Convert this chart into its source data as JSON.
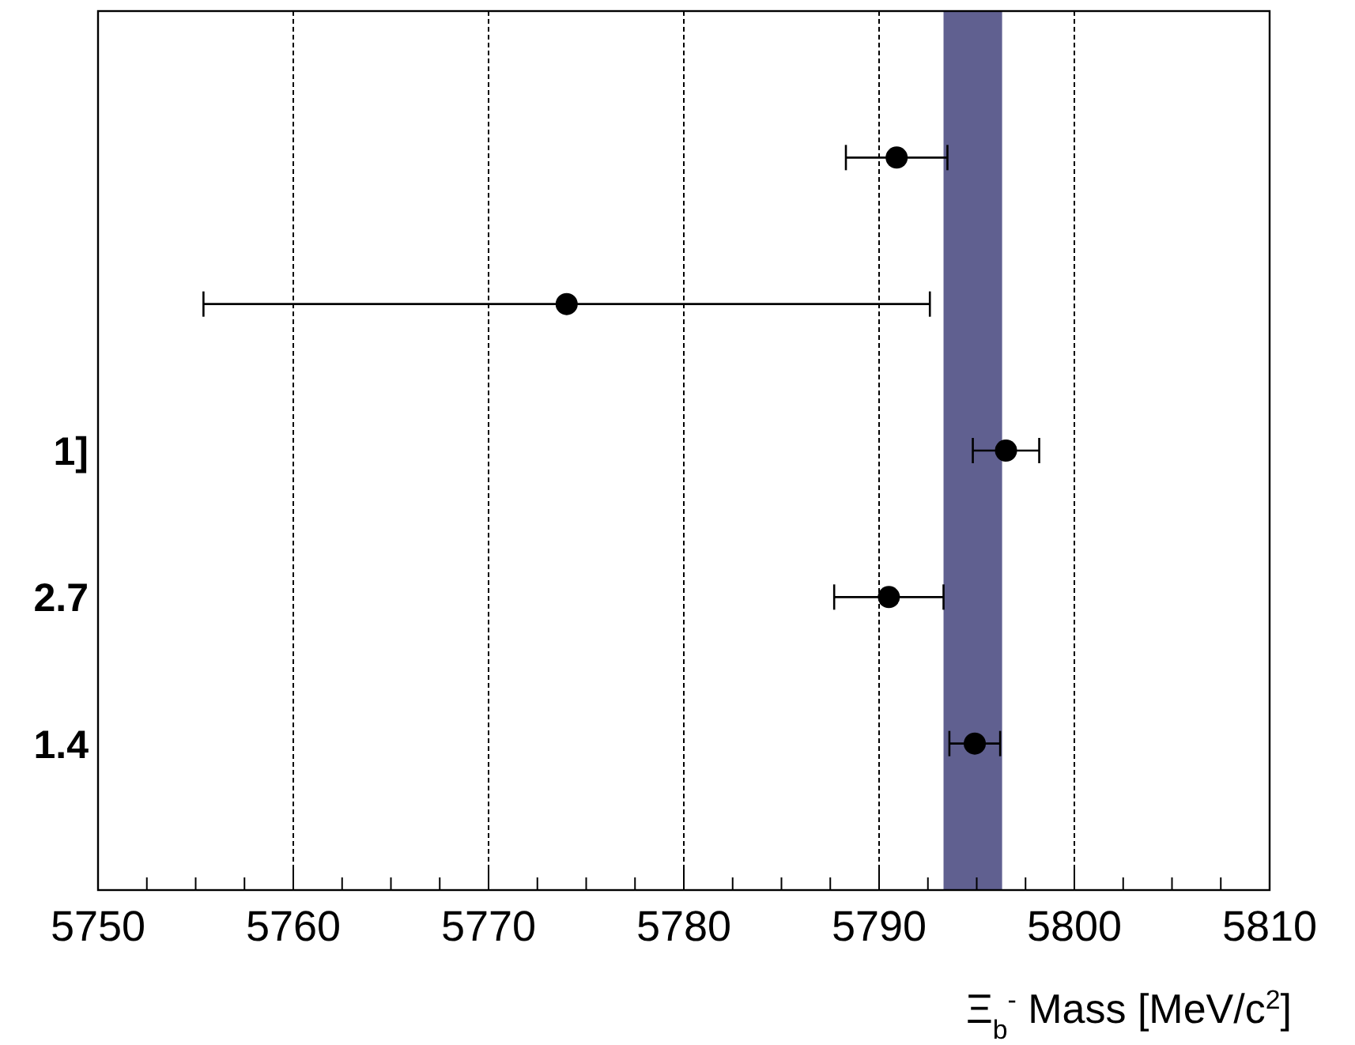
{
  "chart_data": {
    "type": "scatter",
    "orientation": "horizontal",
    "xlabel": "Ξ$_{b}$$^{-}$ Mass [MeV/c$^{2}$]",
    "categories": [
      null,
      null,
      "1]",
      "2.7",
      "1.4"
    ],
    "series": [
      {
        "color": "#000000",
        "values": [
          5790.9,
          5774.0,
          5796.5,
          5790.5,
          5794.9
        ],
        "errors": [
          2.6,
          18.6,
          1.7,
          2.8,
          1.3
        ]
      }
    ],
    "xlim": [
      5750,
      5810
    ],
    "xticks": [
      5750,
      {
        "value": 5752.5,
        "label": null
      },
      {
        "value": 5755,
        "label": null
      },
      {
        "value": 5757.5,
        "label": null
      },
      5760,
      {
        "value": 5762.5,
        "label": null
      },
      {
        "value": 5765,
        "label": null
      },
      {
        "value": 5767.5,
        "label": null
      },
      5770,
      {
        "value": 5772.5,
        "label": null
      },
      {
        "value": 5775,
        "label": null
      },
      {
        "value": 5777.5,
        "label": null
      },
      5780,
      {
        "value": 5782.5,
        "label": null
      },
      {
        "value": 5785,
        "label": null
      },
      {
        "value": 5787.5,
        "label": null
      },
      5790,
      {
        "value": 5792.5,
        "label": null
      },
      {
        "value": 5795,
        "label": null
      },
      {
        "value": 5797.5,
        "label": null
      },
      5800,
      {
        "value": 5802.5,
        "label": null
      },
      {
        "value": 5805,
        "label": null
      },
      {
        "value": 5807.5,
        "label": null
      },
      5810
    ],
    "bands": [
      {
        "axis": "x",
        "from": 5793.3,
        "to": 5796.3,
        "color": "#606090"
      }
    ],
    "grid": "x",
    "marker": "circle"
  }
}
